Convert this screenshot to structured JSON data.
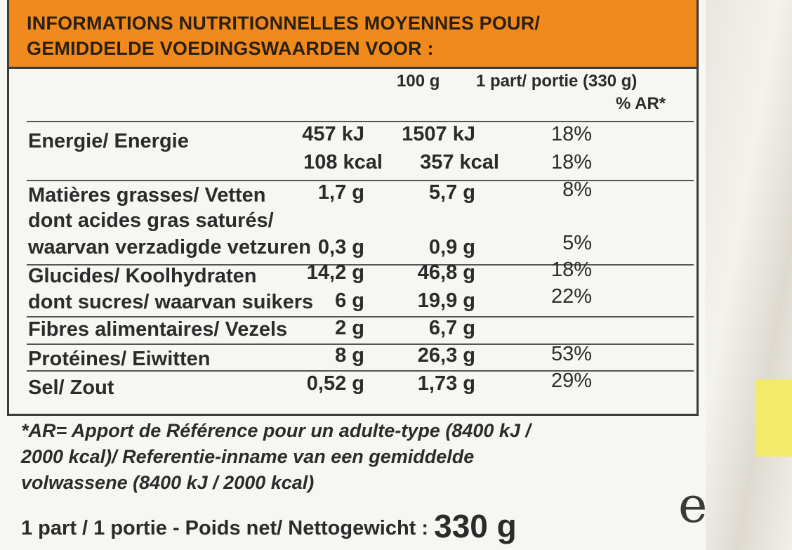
{
  "header": {
    "line1": "INFORMATIONS NUTRITIONNELLES MOYENNES POUR/",
    "line2": "GEMIDDELDE VOEDINGSWAARDEN VOOR :"
  },
  "columns": {
    "per100": "100 g",
    "perPortion": "1 part/ portie (330 g)",
    "ar": "% AR*"
  },
  "rows": {
    "energie": {
      "label": "Energie/ Energie",
      "kj100": "457 kJ",
      "kjPortion": "1507 kJ",
      "kjAr": "18%",
      "kcal100": "108 kcal",
      "kcalPortion": "357 kcal",
      "kcalAr": "18%"
    },
    "fat": {
      "label": "Matières grasses/ Vetten",
      "v100": "1,7 g",
      "vPortion": "5,7 g",
      "ar": "8%"
    },
    "satfat": {
      "label1": "dont acides gras saturés/",
      "label2": "waarvan verzadigde vetzuren",
      "v100": "0,3 g",
      "vPortion": "0,9 g",
      "ar": "5%"
    },
    "carbs": {
      "label": "Glucides/ Koolhydraten",
      "v100": "14,2 g",
      "vPortion": "46,8 g",
      "ar": "18%"
    },
    "sugars": {
      "label": "dont sucres/ waarvan suikers",
      "v100": "6 g",
      "vPortion": "19,9 g",
      "ar": "22%"
    },
    "fibre": {
      "label": "Fibres alimentaires/ Vezels",
      "v100": "2 g",
      "vPortion": "6,7 g"
    },
    "protein": {
      "label": "Protéines/ Eiwitten",
      "v100": "8 g",
      "vPortion": "26,3 g",
      "ar": "53%"
    },
    "salt": {
      "label": "Sel/ Zout",
      "v100": "0,52 g",
      "vPortion": "1,73 g",
      "ar": "29%"
    }
  },
  "footnote": {
    "line1": "*AR= Apport de Référence pour un adulte-type (8400 kJ /",
    "line2": "2000 kcal)/ Referentie-inname van een gemiddelde",
    "line3": "volwassene (8400 kJ / 2000 kcal)"
  },
  "footer": {
    "text": "1 part / 1 portie - Poids net/ Nettogewicht : ",
    "weight": "330 g",
    "estimated_sign": "e"
  }
}
